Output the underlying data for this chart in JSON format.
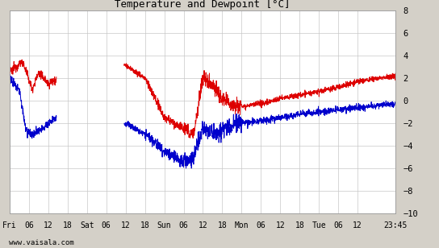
{
  "title": "Temperature and Dewpoint [°C]",
  "ylim": [
    -10,
    8
  ],
  "yticks": [
    -10,
    -8,
    -6,
    -4,
    -2,
    0,
    2,
    4,
    6,
    8
  ],
  "bg_color": "#d4d0c8",
  "plot_bg_color": "#ffffff",
  "grid_color": "#c8c8c8",
  "temp_color": "#dd0000",
  "dewp_color": "#0000cc",
  "x_tick_labels": [
    "Fri",
    "06",
    "12",
    "18",
    "Sat",
    "06",
    "12",
    "18",
    "Sun",
    "06",
    "12",
    "18",
    "Mon",
    "06",
    "12",
    "18",
    "Tue",
    "06",
    "12",
    "23:45"
  ],
  "watermark": "www.vaisala.com",
  "line_width": 0.7
}
